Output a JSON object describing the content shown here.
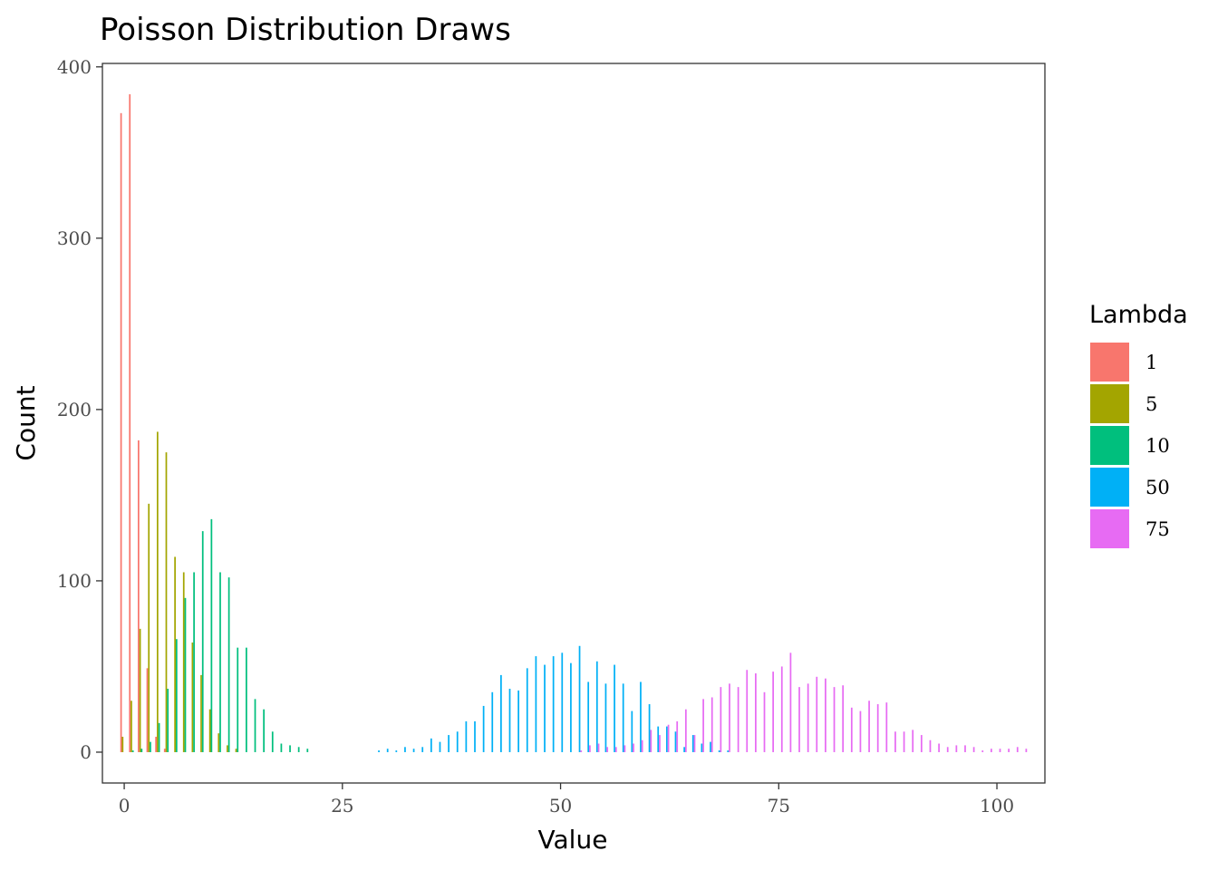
{
  "chart_data": {
    "type": "bar",
    "title": "Poisson Distribution Draws",
    "xlabel": "Value",
    "ylabel": "Count",
    "xlim": [
      -2.5,
      105.5
    ],
    "ylim": [
      -18,
      402
    ],
    "x_ticks": [
      0,
      25,
      50,
      75,
      100
    ],
    "y_ticks": [
      0,
      100,
      200,
      300,
      400
    ],
    "grid": false,
    "legend": {
      "title": "Lambda",
      "position": "right"
    },
    "series": [
      {
        "name": "1",
        "color": "#F8766D",
        "points": [
          [
            0,
            373
          ],
          [
            1,
            384
          ],
          [
            2,
            182
          ],
          [
            3,
            49
          ],
          [
            4,
            9
          ],
          [
            5,
            2
          ]
        ]
      },
      {
        "name": "5",
        "color": "#A3A500",
        "points": [
          [
            0,
            9
          ],
          [
            1,
            30
          ],
          [
            2,
            72
          ],
          [
            3,
            145
          ],
          [
            4,
            187
          ],
          [
            5,
            175
          ],
          [
            6,
            114
          ],
          [
            7,
            105
          ],
          [
            8,
            64
          ],
          [
            9,
            45
          ],
          [
            10,
            25
          ],
          [
            11,
            11
          ],
          [
            12,
            4
          ],
          [
            13,
            2
          ]
        ]
      },
      {
        "name": "10",
        "color": "#00BF7D",
        "points": [
          [
            1,
            1
          ],
          [
            2,
            2
          ],
          [
            3,
            6
          ],
          [
            4,
            17
          ],
          [
            5,
            37
          ],
          [
            6,
            66
          ],
          [
            7,
            90
          ],
          [
            8,
            105
          ],
          [
            9,
            129
          ],
          [
            10,
            136
          ],
          [
            11,
            105
          ],
          [
            12,
            102
          ],
          [
            13,
            61
          ],
          [
            14,
            61
          ],
          [
            15,
            31
          ],
          [
            16,
            25
          ],
          [
            17,
            12
          ],
          [
            18,
            5
          ],
          [
            19,
            4
          ],
          [
            20,
            3
          ],
          [
            21,
            2
          ]
        ]
      },
      {
        "name": "50",
        "color": "#00B0F6",
        "points": [
          [
            29,
            1
          ],
          [
            30,
            2
          ],
          [
            31,
            1
          ],
          [
            32,
            3
          ],
          [
            33,
            2
          ],
          [
            34,
            3
          ],
          [
            35,
            8
          ],
          [
            36,
            6
          ],
          [
            37,
            10
          ],
          [
            38,
            12
          ],
          [
            39,
            18
          ],
          [
            40,
            18
          ],
          [
            41,
            27
          ],
          [
            42,
            35
          ],
          [
            43,
            45
          ],
          [
            44,
            37
          ],
          [
            45,
            36
          ],
          [
            46,
            49
          ],
          [
            47,
            56
          ],
          [
            48,
            51
          ],
          [
            49,
            56
          ],
          [
            50,
            58
          ],
          [
            51,
            52
          ],
          [
            52,
            62
          ],
          [
            53,
            41
          ],
          [
            54,
            53
          ],
          [
            55,
            40
          ],
          [
            56,
            51
          ],
          [
            57,
            40
          ],
          [
            58,
            24
          ],
          [
            59,
            41
          ],
          [
            60,
            28
          ],
          [
            61,
            15
          ],
          [
            62,
            15
          ],
          [
            63,
            12
          ],
          [
            64,
            3
          ],
          [
            65,
            10
          ],
          [
            66,
            5
          ],
          [
            67,
            6
          ],
          [
            68,
            1
          ],
          [
            69,
            1
          ]
        ]
      },
      {
        "name": "75",
        "color": "#E76BF3",
        "points": [
          [
            52,
            1
          ],
          [
            53,
            4
          ],
          [
            54,
            5
          ],
          [
            55,
            3
          ],
          [
            56,
            3
          ],
          [
            57,
            4
          ],
          [
            58,
            5
          ],
          [
            59,
            7
          ],
          [
            60,
            13
          ],
          [
            61,
            10
          ],
          [
            62,
            16
          ],
          [
            63,
            18
          ],
          [
            64,
            25
          ],
          [
            65,
            10
          ],
          [
            66,
            31
          ],
          [
            67,
            32
          ],
          [
            68,
            38
          ],
          [
            69,
            40
          ],
          [
            70,
            38
          ],
          [
            71,
            48
          ],
          [
            72,
            46
          ],
          [
            73,
            35
          ],
          [
            74,
            47
          ],
          [
            75,
            50
          ],
          [
            76,
            58
          ],
          [
            77,
            38
          ],
          [
            78,
            40
          ],
          [
            79,
            44
          ],
          [
            80,
            43
          ],
          [
            81,
            38
          ],
          [
            82,
            39
          ],
          [
            83,
            26
          ],
          [
            84,
            24
          ],
          [
            85,
            30
          ],
          [
            86,
            28
          ],
          [
            87,
            29
          ],
          [
            88,
            12
          ],
          [
            89,
            12
          ],
          [
            90,
            13
          ],
          [
            91,
            10
          ],
          [
            92,
            7
          ],
          [
            93,
            5
          ],
          [
            94,
            3
          ],
          [
            95,
            4
          ],
          [
            96,
            4
          ],
          [
            97,
            3
          ],
          [
            98,
            1
          ],
          [
            99,
            2
          ],
          [
            100,
            2
          ],
          [
            101,
            2
          ],
          [
            102,
            3
          ],
          [
            103,
            2
          ]
        ]
      }
    ]
  }
}
